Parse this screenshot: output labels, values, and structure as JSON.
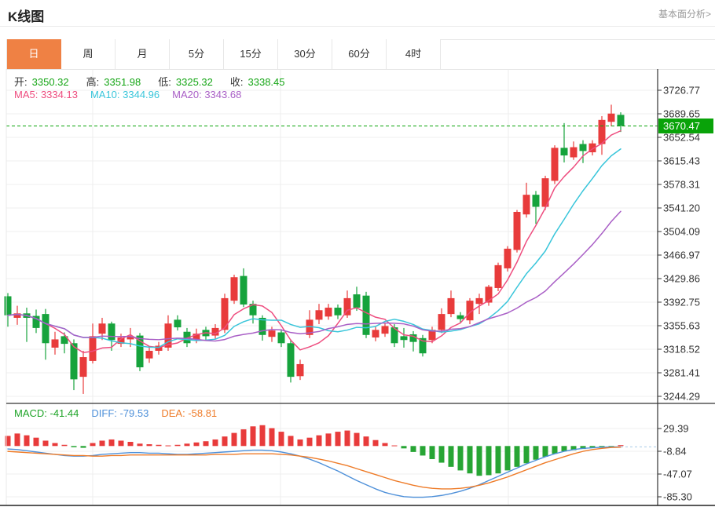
{
  "header": {
    "title": "K线图",
    "link": "基本面分析>"
  },
  "tabs": {
    "items": [
      "日",
      "周",
      "月",
      "5分",
      "15分",
      "30分",
      "60分",
      "4时"
    ],
    "active_index": 0
  },
  "legend_ohlc": [
    {
      "label": "开:",
      "value": "3350.32"
    },
    {
      "label": "高:",
      "value": "3351.98"
    },
    {
      "label": "低:",
      "value": "3325.32"
    },
    {
      "label": "收:",
      "value": "3338.45"
    }
  ],
  "legend_ma": [
    {
      "text": "MA5: 3334.13",
      "color": "#EE4D7F"
    },
    {
      "text": "MA10: 3344.96",
      "color": "#38C5DA"
    },
    {
      "text": "MA20: 3343.68",
      "color": "#A95FC6"
    }
  ],
  "legend_macd": [
    {
      "text": "MACD: -41.44",
      "color": "#1FA428"
    },
    {
      "text": "DIFF: -79.53",
      "color": "#4E90D9"
    },
    {
      "text": "DEA: -58.81",
      "color": "#EE7B28"
    }
  ],
  "colors": {
    "up": "#E83B3B",
    "down": "#16A33C",
    "ohlc_value": "#16A616",
    "ma5": "#EE4D7F",
    "ma10": "#38C5DA",
    "ma20": "#A95FC6",
    "diff": "#4E90D9",
    "dea": "#EE7B28",
    "hist_up": "#E83B3B",
    "hist_down": "#27A534",
    "price_tag_bg": "#09A309",
    "price_tag_text": "#FFFFFF",
    "price_dash": "#0AA30A",
    "macd_dash": "#A8CCE8",
    "grid": "#EFEFEF",
    "frame": "#333333",
    "axis_text": "#333333",
    "tab_active_bg": "#EF8144"
  },
  "chart_data": [
    {
      "type": "candlestick",
      "title": "K线图 (日)",
      "legend_position": "top-left",
      "grid": true,
      "y_axis_labels": [
        "3726.77",
        "3689.65",
        "3652.54",
        "3615.43",
        "3578.31",
        "3541.20",
        "3504.09",
        "3466.97",
        "3429.86",
        "3392.75",
        "3355.63",
        "3318.52",
        "3281.41",
        "3244.29"
      ],
      "ylim": [
        3244.29,
        3726.77
      ],
      "current_price": "3670.47",
      "current_price_value": 3670.47,
      "ma_periods": [
        5,
        10,
        20
      ],
      "candles_ohlc_note": "each entry is [open, high, low, close]; red=rise green=fall",
      "candles": [
        [
          3402,
          3407,
          3354,
          3372
        ],
        [
          3368,
          3387,
          3357,
          3375
        ],
        [
          3375,
          3384,
          3330,
          3368
        ],
        [
          3371,
          3381,
          3344,
          3352
        ],
        [
          3374,
          3382,
          3302,
          3328
        ],
        [
          3321,
          3346,
          3310,
          3334
        ],
        [
          3339,
          3345,
          3312,
          3327
        ],
        [
          3328,
          3334,
          3254,
          3271
        ],
        [
          3275,
          3316,
          3248,
          3306
        ],
        [
          3300,
          3359,
          3296,
          3339
        ],
        [
          3343,
          3368,
          3333,
          3359
        ],
        [
          3359,
          3362,
          3316,
          3333
        ],
        [
          3327,
          3343,
          3322,
          3337
        ],
        [
          3334,
          3352,
          3322,
          3339
        ],
        [
          3340,
          3344,
          3284,
          3290
        ],
        [
          3304,
          3321,
          3297,
          3316
        ],
        [
          3316,
          3330,
          3310,
          3324
        ],
        [
          3321,
          3372,
          3316,
          3359
        ],
        [
          3365,
          3372,
          3348,
          3353
        ],
        [
          3346,
          3352,
          3322,
          3328
        ],
        [
          3334,
          3351,
          3328,
          3343
        ],
        [
          3349,
          3354,
          3332,
          3339
        ],
        [
          3340,
          3358,
          3335,
          3352
        ],
        [
          3349,
          3406,
          3344,
          3399
        ],
        [
          3395,
          3436,
          3390,
          3432
        ],
        [
          3434,
          3446,
          3385,
          3389
        ],
        [
          3390,
          3395,
          3359,
          3372
        ],
        [
          3368,
          3372,
          3332,
          3341
        ],
        [
          3338,
          3354,
          3330,
          3348
        ],
        [
          3345,
          3350,
          3322,
          3328
        ],
        [
          3328,
          3334,
          3266,
          3275
        ],
        [
          3276,
          3302,
          3270,
          3295
        ],
        [
          3341,
          3380,
          3336,
          3365
        ],
        [
          3365,
          3390,
          3358,
          3380
        ],
        [
          3370,
          3390,
          3365,
          3384
        ],
        [
          3384,
          3389,
          3366,
          3372
        ],
        [
          3372,
          3411,
          3368,
          3399
        ],
        [
          3405,
          3417,
          3379,
          3384
        ],
        [
          3403,
          3409,
          3336,
          3341
        ],
        [
          3337,
          3354,
          3331,
          3349
        ],
        [
          3343,
          3360,
          3338,
          3355
        ],
        [
          3353,
          3358,
          3322,
          3328
        ],
        [
          3339,
          3352,
          3321,
          3333
        ],
        [
          3342,
          3347,
          3315,
          3330
        ],
        [
          3336,
          3341,
          3307,
          3312
        ],
        [
          3333,
          3354,
          3328,
          3349
        ],
        [
          3349,
          3383,
          3344,
          3374
        ],
        [
          3374,
          3411,
          3369,
          3399
        ],
        [
          3372,
          3377,
          3360,
          3366
        ],
        [
          3364,
          3399,
          3358,
          3395
        ],
        [
          3390,
          3406,
          3374,
          3399
        ],
        [
          3392,
          3420,
          3387,
          3417
        ],
        [
          3415,
          3455,
          3410,
          3451
        ],
        [
          3446,
          3481,
          3441,
          3477
        ],
        [
          3475,
          3538,
          3471,
          3535
        ],
        [
          3531,
          3581,
          3526,
          3562
        ],
        [
          3562,
          3568,
          3516,
          3543
        ],
        [
          3543,
          3592,
          3538,
          3588
        ],
        [
          3584,
          3640,
          3579,
          3636
        ],
        [
          3636,
          3675,
          3613,
          3624
        ],
        [
          3621,
          3646,
          3617,
          3637
        ],
        [
          3642,
          3648,
          3612,
          3631
        ],
        [
          3629,
          3648,
          3624,
          3643
        ],
        [
          3642,
          3686,
          3625,
          3680
        ],
        [
          3677,
          3704,
          3670,
          3690
        ],
        [
          3688,
          3692,
          3661,
          3670.47
        ]
      ]
    },
    {
      "type": "bar",
      "title": "MACD",
      "y_axis_labels": [
        "29.39",
        "-8.84",
        "-47.07",
        "-85.30"
      ],
      "ylim": [
        -85.3,
        29.39
      ],
      "histogram": [
        17,
        21,
        18,
        14,
        9,
        5,
        2,
        -2,
        -3,
        5,
        9,
        11,
        9,
        7,
        4,
        3,
        2,
        1,
        2,
        4,
        6,
        8,
        11,
        16,
        22,
        28,
        33,
        35,
        30,
        24,
        17,
        11,
        14,
        18,
        21,
        24,
        26,
        22,
        16,
        10,
        5,
        1,
        -4,
        -10,
        -16,
        -22,
        -28,
        -35,
        -41,
        -46,
        -50,
        -49,
        -46,
        -41,
        -35,
        -29,
        -23,
        -18,
        -13,
        -9,
        -7,
        -5,
        -3,
        -2,
        -1,
        1.5
      ],
      "series": [
        {
          "name": "DIFF",
          "values": [
            -5,
            -6,
            -8,
            -10,
            -12,
            -14,
            -16,
            -17,
            -17,
            -16,
            -14,
            -13,
            -12,
            -11,
            -11,
            -12,
            -12,
            -13,
            -14,
            -14,
            -13,
            -12,
            -11,
            -10,
            -9,
            -8,
            -7,
            -7,
            -8,
            -10,
            -13,
            -17,
            -22,
            -28,
            -35,
            -42,
            -50,
            -58,
            -65,
            -72,
            -78,
            -82,
            -85,
            -86,
            -86,
            -85,
            -83,
            -80,
            -76,
            -71,
            -65,
            -58,
            -51,
            -44,
            -37,
            -30,
            -24,
            -18,
            -13,
            -9,
            -6,
            -4,
            -3,
            -2,
            -1.5,
            -1.5
          ]
        },
        {
          "name": "DEA",
          "values": [
            -9,
            -10,
            -11,
            -12,
            -13,
            -14,
            -15,
            -16,
            -16,
            -17,
            -17,
            -16,
            -16,
            -15,
            -15,
            -15,
            -15,
            -15,
            -15,
            -15,
            -15,
            -15,
            -14,
            -14,
            -14,
            -13,
            -13,
            -13,
            -13,
            -14,
            -15,
            -17,
            -19,
            -22,
            -25,
            -29,
            -33,
            -38,
            -43,
            -48,
            -53,
            -58,
            -62,
            -66,
            -69,
            -71,
            -72,
            -72,
            -71,
            -69,
            -66,
            -62,
            -57,
            -52,
            -46,
            -40,
            -34,
            -28,
            -23,
            -18,
            -13,
            -9,
            -6,
            -4,
            -2.5,
            -2
          ]
        }
      ]
    }
  ]
}
